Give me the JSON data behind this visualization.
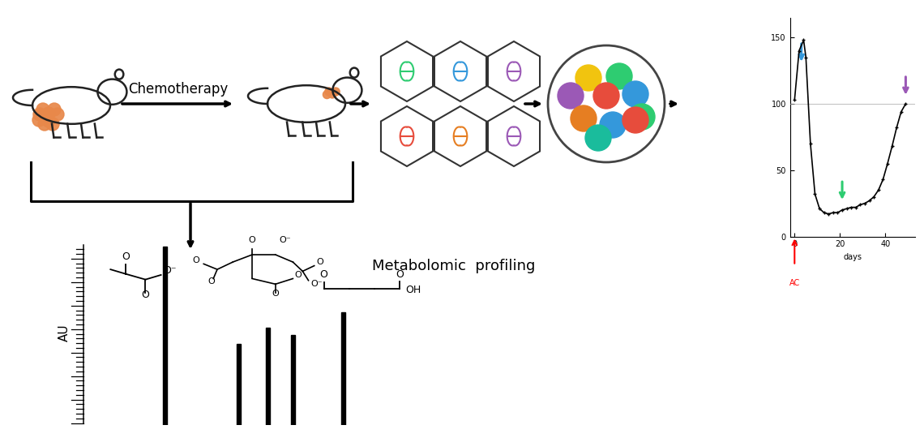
{
  "bg_color": "#ffffff",
  "chemotherapy_label": "Chemotherapy",
  "metabolomic_label": "Metabolomic  profiling",
  "au_label": "AU",
  "days_label": "days",
  "ac_label": "AC",
  "tumor_color": "#E8884A",
  "graph_x": [
    0,
    2,
    4,
    5,
    7,
    9,
    11,
    13,
    15,
    17,
    19,
    21,
    23,
    25,
    27,
    29,
    31,
    33,
    35,
    37,
    39,
    41,
    43,
    45,
    47,
    49
  ],
  "graph_y": [
    103,
    140,
    148,
    135,
    70,
    32,
    21,
    18,
    17,
    18,
    18,
    20,
    21,
    22,
    22,
    24,
    25,
    27,
    30,
    35,
    43,
    55,
    68,
    82,
    94,
    100
  ],
  "hex_gene_colors": [
    "#2ECC71",
    "#3498DB",
    "#9B59B6",
    "#E74C3C",
    "#E67E22",
    "#9B59B6"
  ],
  "ball_colors": [
    "#F1C40F",
    "#2ECC71",
    "#9B59B6",
    "#E74C3C",
    "#3498DB",
    "#2ECC71",
    "#E67E22",
    "#3498DB",
    "#E74C3C",
    "#1ABC9C"
  ],
  "blue_arrow_day": 3,
  "green_arrow_day": 21,
  "purple_arrow_day": 49,
  "graph_yticks": [
    0,
    50,
    100,
    150
  ],
  "graph_xticks": [
    0,
    20,
    40
  ]
}
